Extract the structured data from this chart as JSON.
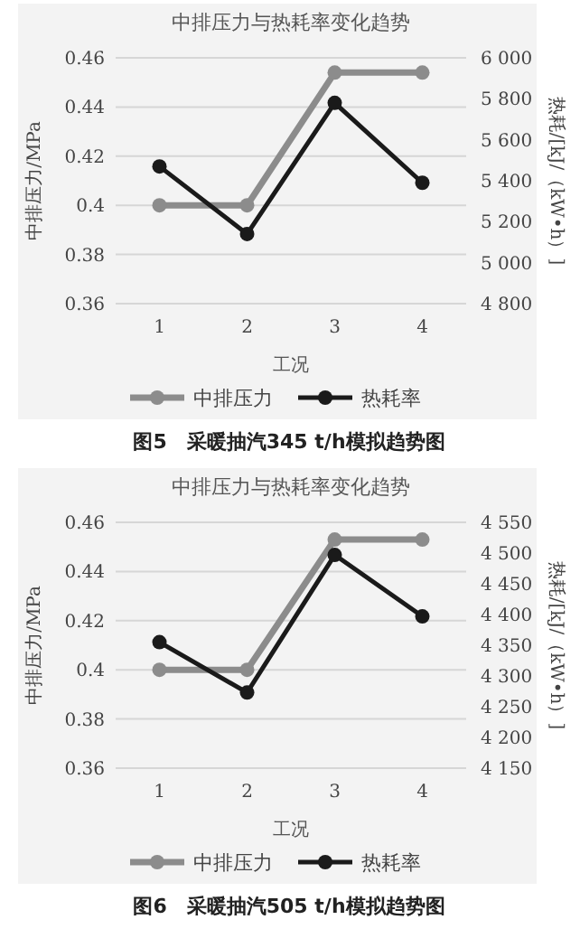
{
  "chart_data": [
    {
      "type": "line",
      "title": "中排压力与热耗率变化趋势",
      "xlabel": "工况",
      "ylabel": "中排压力/MPa",
      "y2label": "热耗/[kJ/（kW•h）]",
      "categories": [
        "1",
        "2",
        "3",
        "4"
      ],
      "series": [
        {
          "name": "中排压力",
          "color": "#8c8c8c",
          "values": [
            0.4,
            0.4,
            0.454,
            0.454
          ]
        },
        {
          "name": "热耗率",
          "color": "#1a1a1a",
          "axis": "y2",
          "values": [
            5470,
            5140,
            5780,
            5390
          ]
        }
      ],
      "ylim": [
        0.36,
        0.46
      ],
      "yticks": [
        0.36,
        0.38,
        0.4,
        0.42,
        0.44,
        0.46
      ],
      "y2lim": [
        4800,
        6000
      ],
      "y2ticks": [
        {
          "value": 4800,
          "label": "4 800"
        },
        {
          "value": 5000,
          "label": "5 000"
        },
        {
          "value": 5200,
          "label": "5 200"
        },
        {
          "value": 5400,
          "label": "5 400"
        },
        {
          "value": 5600,
          "label": "5 600"
        },
        {
          "value": 5800,
          "label": "5 800"
        },
        {
          "value": 6000,
          "label": "6 000"
        }
      ],
      "grid": "y",
      "legend": "bottom",
      "marker": "circle",
      "annotations": [
        "图5　采暖抽汽345 t/h模拟趋势图"
      ]
    },
    {
      "type": "line",
      "title": "中排压力与热耗率变化趋势",
      "xlabel": "工况",
      "ylabel": "中排压力/MPa",
      "y2label": "热耗/[kJ/（kW•h）]",
      "categories": [
        "1",
        "2",
        "3",
        "4"
      ],
      "series": [
        {
          "name": "中排压力",
          "color": "#8c8c8c",
          "values": [
            0.4,
            0.4,
            0.453,
            0.453
          ]
        },
        {
          "name": "热耗率",
          "color": "#1a1a1a",
          "axis": "y2",
          "values": [
            4355,
            4273,
            4497,
            4397
          ]
        }
      ],
      "ylim": [
        0.36,
        0.46
      ],
      "yticks": [
        0.36,
        0.38,
        0.4,
        0.42,
        0.44,
        0.46
      ],
      "y2lim": [
        4150,
        4550
      ],
      "y2ticks": [
        {
          "value": 4150,
          "label": "4 150"
        },
        {
          "value": 4200,
          "label": "4 200"
        },
        {
          "value": 4250,
          "label": "4 250"
        },
        {
          "value": 4300,
          "label": "4 300"
        },
        {
          "value": 4350,
          "label": "4 350"
        },
        {
          "value": 4400,
          "label": "4 400"
        },
        {
          "value": 4450,
          "label": "4 450"
        },
        {
          "value": 4500,
          "label": "4 500"
        },
        {
          "value": 4550,
          "label": "4 550"
        }
      ],
      "grid": "y",
      "legend": "bottom",
      "marker": "circle",
      "annotations": [
        "图6　采暖抽汽505 t/h模拟趋势图"
      ]
    }
  ]
}
